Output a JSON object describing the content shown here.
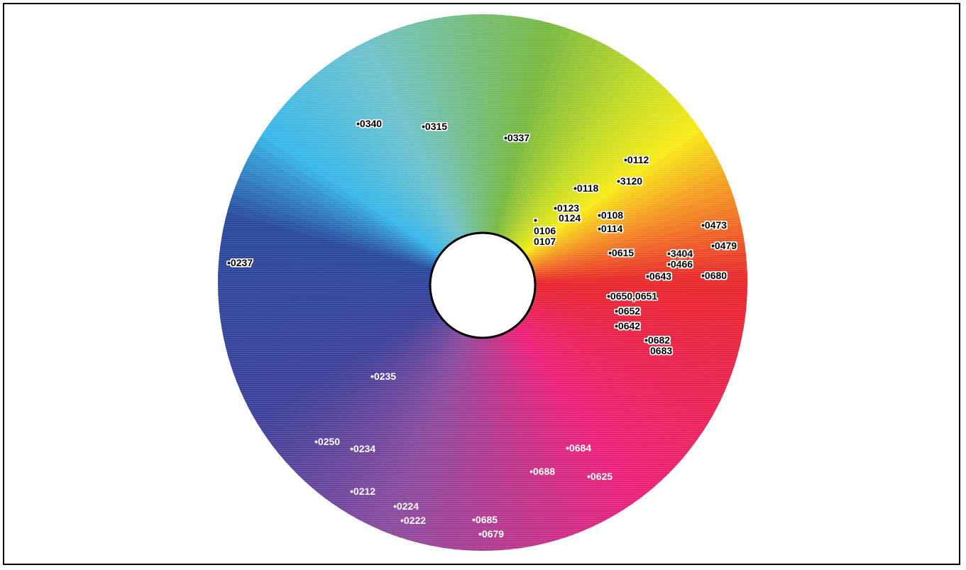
{
  "wheel": {
    "hue_stops": [
      {
        "angle_deg": 0,
        "color": "#e8242a"
      },
      {
        "angle_deg": 55,
        "color": "#ec1f7a"
      },
      {
        "angle_deg": 110,
        "color": "#8d4a9e"
      },
      {
        "angle_deg": 150,
        "color": "#3b3f99"
      },
      {
        "angle_deg": 195,
        "color": "#27479b"
      },
      {
        "angle_deg": 215,
        "color": "#37b7ea"
      },
      {
        "angle_deg": 245,
        "color": "#6fc2c9"
      },
      {
        "angle_deg": 285,
        "color": "#77b83f"
      },
      {
        "angle_deg": 310,
        "color": "#c7dc22"
      },
      {
        "angle_deg": 325,
        "color": "#f7ea16"
      },
      {
        "angle_deg": 340,
        "color": "#f59322"
      },
      {
        "angle_deg": 360,
        "color": "#e8242a"
      }
    ],
    "center_hole_color": "#ffffff"
  },
  "labels": [
    {
      "text": "•0340",
      "tone": "dark"
    },
    {
      "text": "•0315",
      "tone": "dark"
    },
    {
      "text": "•0337",
      "tone": "dark"
    },
    {
      "text": "•0112",
      "tone": "dark"
    },
    {
      "text": "•3120",
      "tone": "dark"
    },
    {
      "text": "•0118",
      "tone": "dark"
    },
    {
      "text": "•0123",
      "tone": "dark"
    },
    {
      "text": "0124",
      "tone": "dark"
    },
    {
      "text": "•",
      "tone": "dark"
    },
    {
      "text": "0106",
      "tone": "dark"
    },
    {
      "text": "0107",
      "tone": "dark"
    },
    {
      "text": "•0108",
      "tone": "dark"
    },
    {
      "text": "•0114",
      "tone": "dark"
    },
    {
      "text": "•0473",
      "tone": "dark"
    },
    {
      "text": "•0479",
      "tone": "dark"
    },
    {
      "text": "•0615",
      "tone": "dark"
    },
    {
      "text": "•3404",
      "tone": "dark"
    },
    {
      "text": "•0466",
      "tone": "dark"
    },
    {
      "text": "•0643",
      "tone": "dark"
    },
    {
      "text": "•0680",
      "tone": "dark"
    },
    {
      "text": "•0237",
      "tone": "dark"
    },
    {
      "text": "•0650,0651",
      "tone": "dark"
    },
    {
      "text": "•0652",
      "tone": "dark"
    },
    {
      "text": "•0642",
      "tone": "dark"
    },
    {
      "text": "•0682",
      "tone": "dark"
    },
    {
      "text": "0683",
      "tone": "dark"
    },
    {
      "text": "•0235",
      "tone": "light"
    },
    {
      "text": "•0250",
      "tone": "light"
    },
    {
      "text": "•0234",
      "tone": "light"
    },
    {
      "text": "•0684",
      "tone": "light"
    },
    {
      "text": "•0688",
      "tone": "light"
    },
    {
      "text": "•0625",
      "tone": "light"
    },
    {
      "text": "•0212",
      "tone": "light"
    },
    {
      "text": "•0224",
      "tone": "light"
    },
    {
      "text": "•0222",
      "tone": "light"
    },
    {
      "text": "•0685",
      "tone": "light"
    },
    {
      "text": "•0679",
      "tone": "light"
    }
  ]
}
